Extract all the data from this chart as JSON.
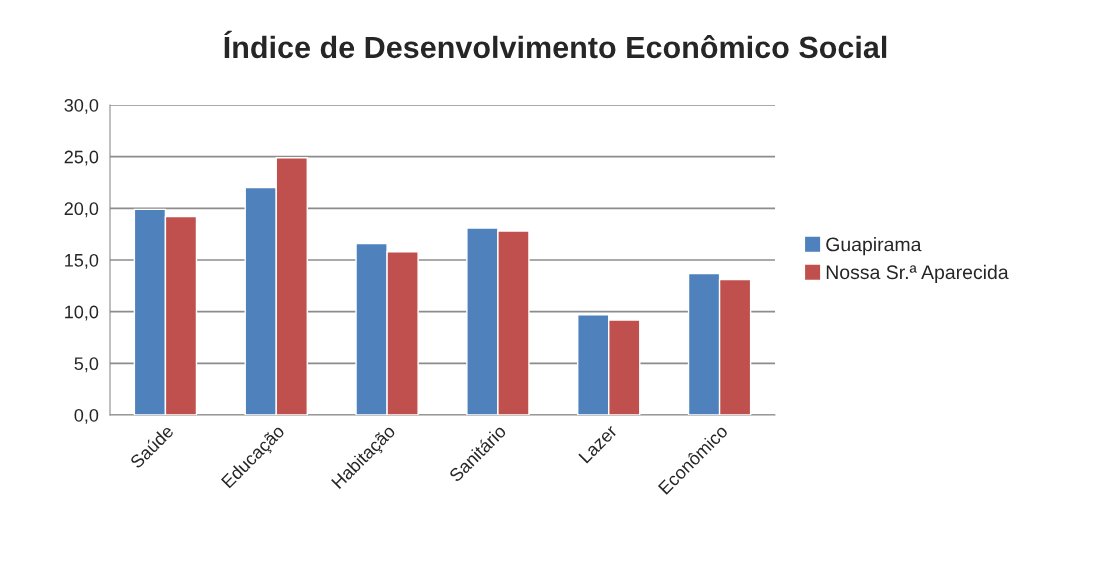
{
  "chart_data": {
    "type": "bar",
    "title": "Índice de Desenvolvimento Econômico Social",
    "categories": [
      "Saúde",
      "Educação",
      "Habitação",
      "Sanitário",
      "Lazer",
      "Econômico"
    ],
    "series": [
      {
        "name": "Guapirama",
        "color": "#4f81bd",
        "values": [
          19.9,
          22.0,
          16.6,
          18.1,
          9.7,
          13.7
        ]
      },
      {
        "name": "Nossa Sr.ª Aparecida",
        "color": "#c0504d",
        "values": [
          19.2,
          24.9,
          15.8,
          17.8,
          9.2,
          13.1
        ]
      }
    ],
    "ylim": [
      0,
      30
    ],
    "yticks": [
      {
        "value": 0,
        "label": "0,0"
      },
      {
        "value": 5,
        "label": "5,0"
      },
      {
        "value": 10,
        "label": "10,0"
      },
      {
        "value": 15,
        "label": "15,0"
      },
      {
        "value": 20,
        "label": "20,0"
      },
      {
        "value": 25,
        "label": "25,0"
      },
      {
        "value": 30,
        "label": "30,0"
      }
    ],
    "grid": "y",
    "legend": "right"
  }
}
